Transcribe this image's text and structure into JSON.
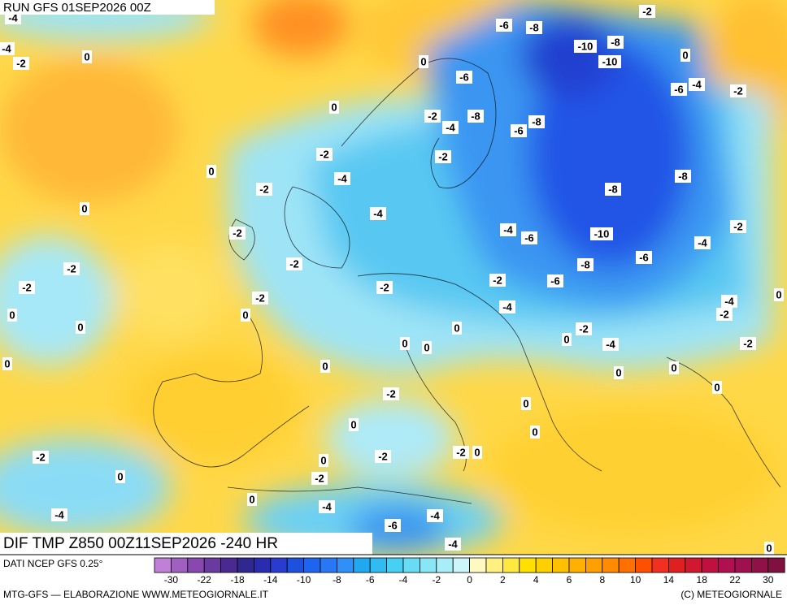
{
  "header": {
    "run": "RUN GFS 01SEP2026 00Z",
    "product": "DIF TMP Z850 00Z11SEP2026 -240 HR"
  },
  "map": {
    "contour_labels": [
      -4,
      -4,
      -2,
      0,
      0,
      -6,
      -8,
      -2,
      -10,
      -8,
      -10,
      0,
      -6,
      -6,
      -4,
      -2,
      0,
      -2,
      -8,
      -4,
      -8,
      -6,
      -2,
      -2,
      0,
      -4,
      -8,
      -2,
      -8,
      0,
      -4,
      -2,
      -2,
      -4,
      -6,
      -10,
      -4,
      -6,
      -2,
      -8,
      -2,
      -2,
      -2,
      -2,
      -6,
      -2,
      -4,
      0,
      -4,
      0,
      0,
      -2,
      0,
      0,
      -2,
      0,
      0,
      0,
      -4,
      -2,
      0,
      0,
      0,
      0,
      0,
      -2,
      0,
      0,
      0,
      -2,
      0,
      -2,
      -2,
      0,
      0,
      -2,
      0,
      -4,
      -4,
      -6,
      -4,
      -4,
      0
    ]
  },
  "legend": {
    "source": "DATI NCEP GFS 0.25°",
    "ticks": [
      -30,
      -22,
      -18,
      -14,
      -10,
      -8,
      -6,
      -4,
      -2,
      0,
      2,
      4,
      6,
      8,
      10,
      14,
      18,
      22,
      30
    ]
  },
  "footer": {
    "left": "MTG-GFS — ELABORAZIONE WWW.METEOGIORNALE.IT",
    "right": "(C) METEOGIORNALE"
  }
}
